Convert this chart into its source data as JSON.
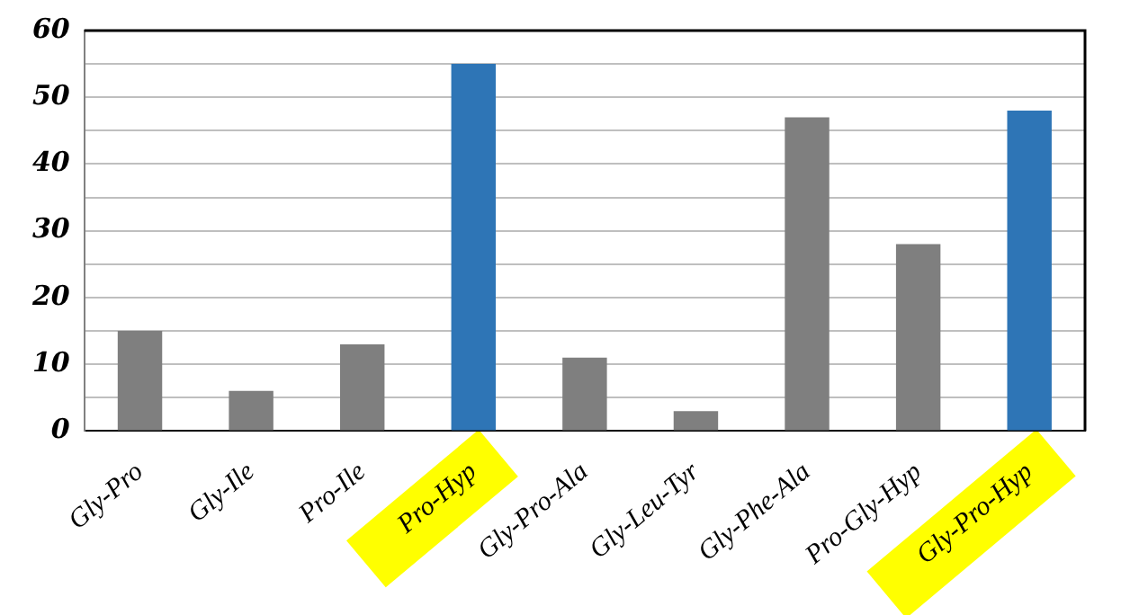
{
  "chart_data": {
    "type": "bar",
    "categories": [
      "Gly-Pro",
      "Gly-Ile",
      "Pro-Ile",
      "Pro-Hyp",
      "Gly-Pro-Ala",
      "Gly-Leu-Tyr",
      "Gly-Phe-Ala",
      "Pro-Gly-Hyp",
      "Gly-Pro-Hyp"
    ],
    "values": [
      15,
      6,
      13,
      55,
      11,
      3,
      47,
      28,
      48
    ],
    "colors": [
      "#7f7f7f",
      "#7f7f7f",
      "#7f7f7f",
      "#2e75b6",
      "#7f7f7f",
      "#7f7f7f",
      "#7f7f7f",
      "#7f7f7f",
      "#2e75b6"
    ],
    "ylim": [
      0,
      60
    ],
    "yticks": [
      0,
      {
        "value": 5,
        "label": null
      },
      10,
      {
        "value": 15,
        "label": null
      },
      20,
      {
        "value": 25,
        "label": null
      },
      30,
      {
        "value": 35,
        "label": null
      },
      40,
      {
        "value": 45,
        "label": null
      },
      50,
      {
        "value": 55,
        "label": null
      },
      60
    ],
    "grid": "y",
    "legend": false
  }
}
